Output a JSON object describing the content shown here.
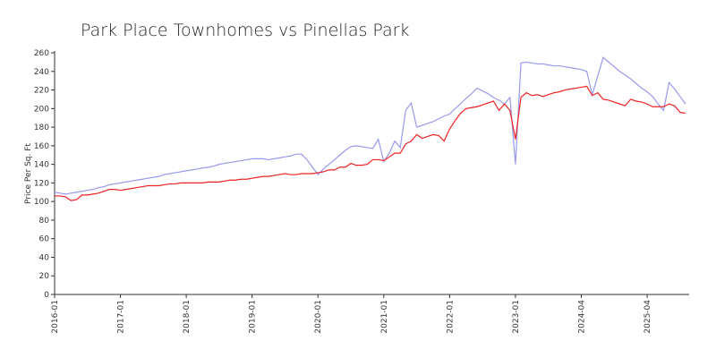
{
  "chart_data": {
    "type": "line",
    "title": "Park Place Townhomes vs Pinellas Park",
    "y_label": "Price Per Sq. Ft",
    "categories": [
      "2016-01",
      null,
      null,
      null,
      null,
      null,
      null,
      null,
      null,
      null,
      null,
      null,
      "2017-01",
      null,
      null,
      null,
      null,
      null,
      null,
      null,
      null,
      null,
      null,
      null,
      "2018-01",
      null,
      null,
      null,
      null,
      null,
      null,
      null,
      null,
      null,
      null,
      null,
      "2019-01",
      null,
      null,
      null,
      null,
      null,
      null,
      null,
      null,
      null,
      null,
      null,
      "2020-01",
      null,
      null,
      null,
      null,
      null,
      null,
      null,
      null,
      null,
      null,
      null,
      "2021-01",
      null,
      null,
      null,
      null,
      null,
      null,
      null,
      null,
      null,
      null,
      null,
      "2022-01",
      null,
      null,
      null,
      null,
      null,
      null,
      null,
      null,
      null,
      null,
      null,
      "2023-01",
      null,
      null,
      null,
      null,
      null,
      null,
      null,
      null,
      null,
      null,
      null,
      "2024-04",
      null,
      null,
      null,
      null,
      null,
      null,
      null,
      null,
      null,
      null,
      null,
      "2025-04",
      null,
      null,
      null,
      null,
      null,
      null,
      null
    ],
    "series": [
      {
        "color": "#9999ee",
        "values": [
          110,
          109,
          108,
          109,
          110,
          111,
          112,
          113,
          115,
          116,
          118,
          119,
          120,
          121,
          122,
          123,
          124,
          125,
          126,
          127,
          129,
          130,
          131,
          132,
          133,
          134,
          135,
          136,
          137,
          138,
          140,
          141,
          142,
          143,
          144,
          145,
          146,
          146,
          146,
          145,
          146,
          147,
          148,
          149,
          151,
          151,
          145,
          137,
          129,
          135,
          140,
          145,
          150,
          155,
          159,
          160,
          159,
          158,
          157,
          167,
          143,
          152,
          165,
          158,
          198,
          206,
          180,
          182,
          184,
          186,
          189,
          192,
          194,
          200,
          205,
          211,
          216,
          222,
          219,
          216,
          212,
          209,
          205,
          212,
          140,
          249,
          250,
          249,
          248,
          248,
          247,
          246,
          246,
          245,
          244,
          243,
          242,
          240,
          215,
          235,
          255,
          250,
          245,
          240,
          236,
          232,
          227,
          222,
          218,
          213,
          205,
          198,
          228,
          221,
          213,
          205
        ]
      },
      {
        "color": "#ee2222",
        "values": [
          106,
          106,
          105,
          101,
          102,
          107,
          107,
          108,
          109,
          111,
          113,
          113,
          112,
          113,
          114,
          115,
          116,
          117,
          117,
          117,
          118,
          119,
          119,
          120,
          120,
          120,
          120,
          120,
          121,
          121,
          121,
          122,
          123,
          123,
          124,
          124,
          125,
          126,
          127,
          127,
          128,
          129,
          130,
          129,
          129,
          130,
          130,
          130,
          131,
          132,
          134,
          134,
          137,
          137,
          141,
          139,
          139,
          140,
          145,
          145,
          144,
          148,
          152,
          152,
          162,
          165,
          172,
          168,
          170,
          172,
          171,
          165,
          178,
          187,
          195,
          200,
          201,
          202,
          204,
          206,
          208,
          198,
          205,
          198,
          167,
          212,
          217,
          214,
          215,
          213,
          215,
          217,
          218,
          220,
          221,
          222,
          223,
          224,
          214,
          217,
          210,
          209,
          207,
          205,
          203,
          210,
          208,
          207,
          205,
          202,
          202,
          202,
          205,
          203,
          196,
          195
        ]
      }
    ],
    "ylim": [
      0,
      260
    ],
    "yticks": [
      0,
      20,
      40,
      60,
      80,
      100,
      120,
      140,
      160,
      180,
      200,
      220,
      240,
      260
    ]
  }
}
